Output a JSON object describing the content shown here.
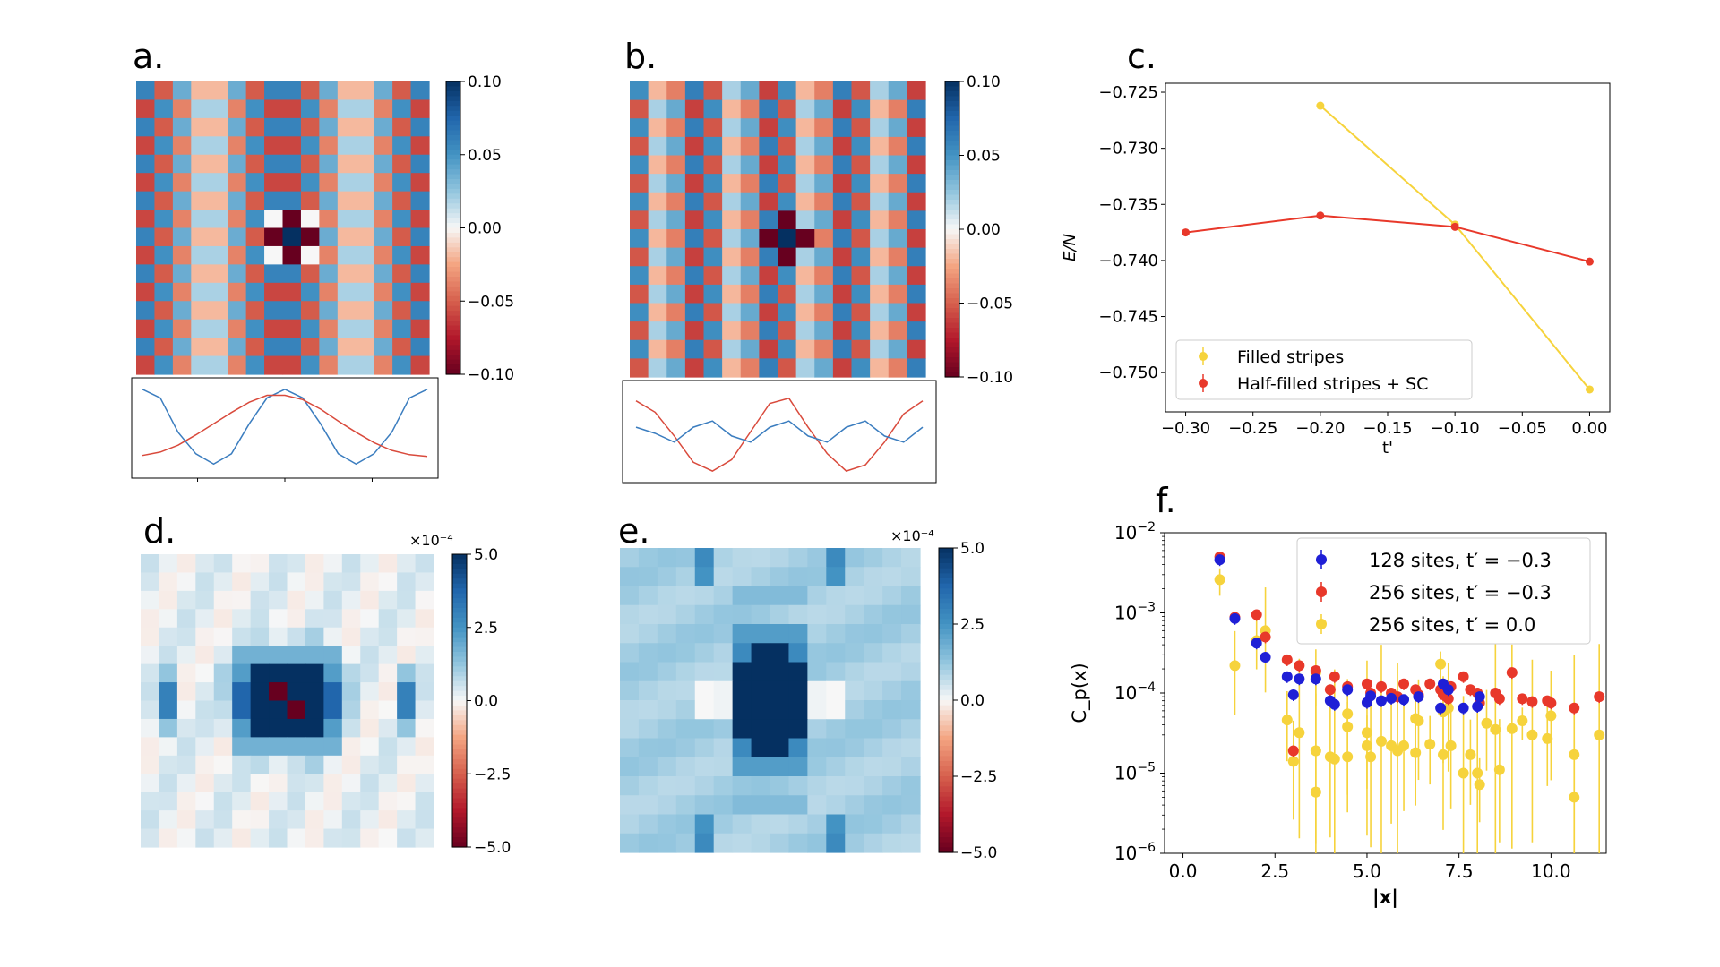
{
  "panels": {
    "a": {
      "letter": "a.",
      "colorbar": {
        "ticks": [
          0.1,
          0.05,
          0.0,
          -0.05,
          -0.1
        ],
        "labels": [
          "0.10",
          "0.05",
          "0.00",
          "−0.05",
          "−0.10"
        ]
      }
    },
    "b": {
      "letter": "b.",
      "colorbar": {
        "ticks": [
          0.1,
          0.05,
          0.0,
          -0.05,
          -0.1
        ],
        "labels": [
          "0.10",
          "0.05",
          "0.00",
          "−0.05",
          "−0.10"
        ]
      }
    },
    "c": {
      "letter": "c."
    },
    "d": {
      "letter": "d.",
      "colorbar": {
        "exponent": "×10⁻⁴",
        "ticks": [
          5.0,
          2.5,
          0.0,
          -2.5,
          -5.0
        ],
        "labels": [
          "5.0",
          "2.5",
          "0.0",
          "−2.5",
          "−5.0"
        ]
      }
    },
    "e": {
      "letter": "e.",
      "colorbar": {
        "exponent": "×10⁻⁴",
        "ticks": [
          5.0,
          2.5,
          0.0,
          -2.5,
          -5.0
        ],
        "labels": [
          "5.0",
          "2.5",
          "0.0",
          "−2.5",
          "−5.0"
        ]
      }
    },
    "f": {
      "letter": "f."
    }
  },
  "colors": {
    "red": "#e8382a",
    "yellow": "#f6d33c",
    "blue": "#1f1fd6",
    "line_blue": "#3b7dbf",
    "line_red": "#d94a3c",
    "dark_blue": "#08306b",
    "dark_red": "#67001f"
  },
  "chart_data": [
    {
      "id": "a",
      "type": "heatmap",
      "description_values": "spin pattern with period-8 sine modulation and central hole",
      "grid": [
        16,
        16
      ],
      "range": [
        -0.1,
        0.1
      ],
      "profile_lines": [
        {
          "name": "blue",
          "values": [
            0.95,
            0.85,
            0.45,
            0.2,
            0.08,
            0.2,
            0.55,
            0.85,
            0.95,
            0.85,
            0.55,
            0.2,
            0.08,
            0.2,
            0.45,
            0.85,
            0.95
          ]
        },
        {
          "name": "red",
          "values": [
            0.18,
            0.22,
            0.3,
            0.42,
            0.55,
            0.68,
            0.8,
            0.88,
            0.88,
            0.83,
            0.72,
            0.58,
            0.45,
            0.33,
            0.24,
            0.19,
            0.17
          ]
        }
      ]
    },
    {
      "id": "b",
      "type": "heatmap",
      "description_values": "spin pattern with period-4 modulation and central hole",
      "grid": [
        16,
        16
      ],
      "range": [
        -0.1,
        0.1
      ],
      "profile_lines": [
        {
          "name": "red",
          "values": [
            0.85,
            0.72,
            0.45,
            0.15,
            0.05,
            0.18,
            0.5,
            0.82,
            0.88,
            0.55,
            0.25,
            0.05,
            0.12,
            0.38,
            0.7,
            0.85
          ]
        },
        {
          "name": "blue",
          "values": [
            0.55,
            0.48,
            0.38,
            0.55,
            0.62,
            0.45,
            0.38,
            0.55,
            0.62,
            0.45,
            0.38,
            0.55,
            0.62,
            0.45,
            0.38,
            0.55
          ]
        }
      ]
    },
    {
      "id": "c",
      "type": "line",
      "xlabel": "t'",
      "ylabel": "E/N",
      "xlim": [
        -0.315,
        0.015
      ],
      "ylim": [
        -0.7535,
        -0.7242
      ],
      "xticks": [
        -0.3,
        -0.25,
        -0.2,
        -0.15,
        -0.1,
        -0.05,
        0.0
      ],
      "xtick_labels": [
        "−0.30",
        "−0.25",
        "−0.20",
        "−0.15",
        "−0.10",
        "−0.05",
        "0.00"
      ],
      "yticks": [
        -0.725,
        -0.73,
        -0.735,
        -0.74,
        -0.745,
        -0.75
      ],
      "ytick_labels": [
        "−0.725",
        "−0.730",
        "−0.735",
        "−0.740",
        "−0.745",
        "−0.750"
      ],
      "series": [
        {
          "name": "Filled stripes",
          "color": "#f6d33c",
          "x": [
            -0.2,
            -0.1,
            0.0
          ],
          "y": [
            -0.7262,
            -0.7368,
            -0.7515
          ]
        },
        {
          "name": "Half-filled stripes + SC",
          "color": "#e8382a",
          "x": [
            -0.3,
            -0.2,
            -0.1,
            0.0
          ],
          "y": [
            -0.7375,
            -0.736,
            -0.737,
            -0.7401
          ]
        }
      ],
      "legend_loc": "lower-left"
    },
    {
      "id": "d",
      "type": "heatmap",
      "grid": [
        16,
        16
      ],
      "range": [
        -5.0,
        5.0
      ],
      "scale_note": "×10⁻⁴"
    },
    {
      "id": "e",
      "type": "heatmap",
      "grid": [
        16,
        16
      ],
      "range": [
        -5.0,
        5.0
      ],
      "scale_note": "×10⁻⁴"
    },
    {
      "id": "f",
      "type": "scatter",
      "xlabel": "|x|",
      "ylabel": "C_p(x)",
      "xlim": [
        -0.5,
        11.5
      ],
      "ylog": true,
      "ylim_exp": [
        -6,
        -2
      ],
      "xticks": [
        0.0,
        2.5,
        5.0,
        7.5,
        10.0
      ],
      "xtick_labels": [
        "0.0",
        "2.5",
        "5.0",
        "7.5",
        "10.0"
      ],
      "yticks_exp": [
        -2,
        -3,
        -4,
        -5,
        -6
      ],
      "series": [
        {
          "name": "128 sites, t′ = −0.3",
          "color": "#1f1fd6",
          "points": [
            [
              1.0,
              0.0046
            ],
            [
              1.41,
              0.00085
            ],
            [
              2.0,
              0.00042
            ],
            [
              2.24,
              0.00028
            ],
            [
              2.83,
              0.00016
            ],
            [
              3.0,
              9.5e-05
            ],
            [
              3.16,
              0.00015
            ],
            [
              3.61,
              0.00015
            ],
            [
              4.0,
              8e-05
            ],
            [
              4.12,
              7.2e-05
            ],
            [
              4.47,
              0.00011
            ],
            [
              5.0,
              7.6e-05
            ],
            [
              5.1,
              9.2e-05
            ],
            [
              5.39,
              8e-05
            ],
            [
              5.66,
              8.6e-05
            ],
            [
              6.0,
              8.3e-05
            ],
            [
              6.4,
              9e-05
            ],
            [
              7.0,
              6.5e-05
            ],
            [
              7.07,
              0.00013
            ],
            [
              7.21,
              0.00011
            ],
            [
              7.62,
              6.5e-05
            ],
            [
              8.0,
              6.8e-05
            ],
            [
              8.06,
              9e-05
            ]
          ]
        },
        {
          "name": "256 sites, t′ = −0.3",
          "color": "#e8382a",
          "points": [
            [
              1.0,
              0.005
            ],
            [
              1.41,
              0.00088
            ],
            [
              2.0,
              0.00095
            ],
            [
              2.24,
              0.0005
            ],
            [
              2.83,
              0.00026
            ],
            [
              3.0,
              1.9e-05
            ],
            [
              3.16,
              0.00022
            ],
            [
              3.61,
              0.00019
            ],
            [
              4.0,
              0.00011
            ],
            [
              4.12,
              0.00016
            ],
            [
              4.47,
              0.00012
            ],
            [
              5.0,
              0.00013
            ],
            [
              5.1,
              0.0001
            ],
            [
              5.39,
              0.00012
            ],
            [
              5.66,
              0.0001
            ],
            [
              5.83,
              9e-05
            ],
            [
              6.0,
              0.00013
            ],
            [
              6.32,
              0.00011
            ],
            [
              6.4,
              9.5e-05
            ],
            [
              6.71,
              0.00013
            ],
            [
              7.0,
              0.00011
            ],
            [
              7.07,
              9.5e-05
            ],
            [
              7.21,
              8.5e-05
            ],
            [
              7.28,
              0.00012
            ],
            [
              7.62,
              0.00016
            ],
            [
              7.81,
              0.00011
            ],
            [
              8.0,
              0.0001
            ],
            [
              8.06,
              7.5e-05
            ],
            [
              8.49,
              0.0001
            ],
            [
              8.6,
              8.5e-05
            ],
            [
              8.94,
              0.00018
            ],
            [
              9.22,
              8.5e-05
            ],
            [
              9.49,
              7.8e-05
            ],
            [
              9.9,
              8e-05
            ],
            [
              10.0,
              7.5e-05
            ],
            [
              10.63,
              6.5e-05
            ],
            [
              11.31,
              9e-05
            ]
          ]
        },
        {
          "name": "256 sites, t′ = 0.0",
          "color": "#f6d33c",
          "points": [
            [
              1.0,
              0.0026
            ],
            [
              1.41,
              0.00022
            ],
            [
              2.0,
              0.00045
            ],
            [
              2.24,
              0.0006
            ],
            [
              2.83,
              4.6e-05
            ],
            [
              3.0,
              1.4e-05
            ],
            [
              3.16,
              3.2e-05
            ],
            [
              3.61,
              0.00018
            ],
            [
              3.61,
              1.9e-05
            ],
            [
              3.61,
              5.8e-06
            ],
            [
              4.0,
              1.6e-05
            ],
            [
              4.12,
              1.5e-05
            ],
            [
              4.47,
              3.8e-05
            ],
            [
              4.47,
              5.5e-05
            ],
            [
              4.47,
              1.6e-05
            ],
            [
              5.0,
              3.2e-05
            ],
            [
              5.0,
              2.2e-05
            ],
            [
              5.1,
              1.6e-05
            ],
            [
              5.39,
              2.5e-05
            ],
            [
              5.66,
              2.2e-05
            ],
            [
              5.83,
              1.9e-05
            ],
            [
              6.0,
              2.2e-05
            ],
            [
              6.32,
              4.8e-05
            ],
            [
              6.32,
              1.8e-05
            ],
            [
              6.4,
              4.5e-05
            ],
            [
              6.71,
              2.3e-05
            ],
            [
              7.0,
              0.00023
            ],
            [
              7.07,
              5.8e-05
            ],
            [
              7.07,
              1.7e-05
            ],
            [
              7.21,
              6.5e-05
            ],
            [
              7.28,
              2.2e-05
            ],
            [
              7.62,
              1e-05
            ],
            [
              7.81,
              1.7e-05
            ],
            [
              8.0,
              1e-05
            ],
            [
              8.06,
              7.2e-06
            ],
            [
              8.25,
              4.2e-05
            ],
            [
              8.49,
              3.5e-05
            ],
            [
              8.6,
              1.1e-05
            ],
            [
              8.94,
              3.6e-05
            ],
            [
              9.22,
              4.5e-05
            ],
            [
              9.49,
              3e-05
            ],
            [
              9.9,
              2.7e-05
            ],
            [
              10.0,
              5.2e-05
            ],
            [
              10.63,
              1.7e-05
            ],
            [
              10.63,
              5e-06
            ],
            [
              11.31,
              3e-05
            ]
          ]
        }
      ],
      "legend_loc": "upper-right"
    }
  ]
}
